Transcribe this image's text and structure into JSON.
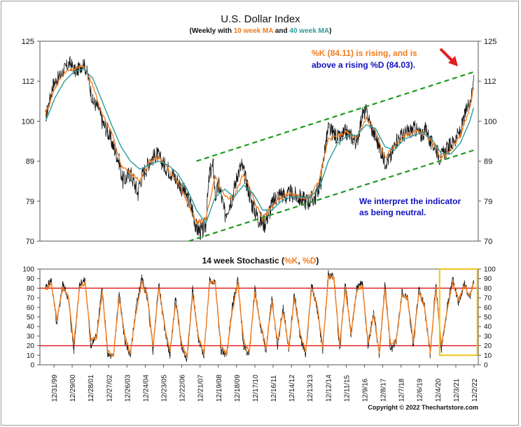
{
  "title": "U.S. Dollar Index",
  "subtitle": {
    "prefix": "(Weekly with ",
    "ma_short": "10 week MA",
    "middle": " and ",
    "ma_long": "40 week MA",
    "suffix": ")"
  },
  "annotations": {
    "k_line1_a": "%K (84.11)",
    "k_line1_b": " is rising, and is",
    "k_line2_a": "above a rising ",
    "k_line2_b": "%D (84.03).",
    "interpret_line1": "We interpret the indicator",
    "interpret_line2": "as being neutral."
  },
  "stoch_title": {
    "prefix": "14 week Stochastic (",
    "k": "%K",
    "sep": ", ",
    "d": "%D",
    "suffix": ")"
  },
  "copyright": "Copyright © 2022 Thechartstore.com",
  "colors": {
    "price": "#111111",
    "ma10": "#f07c1e",
    "ma40": "#2a9b9b",
    "channel": "#1f9a1f",
    "arrow": "#e02020",
    "k_line": "#111111",
    "d_line": "#f07c1e",
    "stoch_levels": "#e02020",
    "highlight_box": "#f0c419",
    "annotation_blue": "#1010c0"
  },
  "chart_data": [
    {
      "type": "line",
      "title": "U.S. Dollar Index",
      "ylim": [
        70,
        125
      ],
      "y_ticks": [
        70,
        79,
        89,
        100,
        112,
        125
      ],
      "x_ticks": [
        "12/31/99",
        "12/29/00",
        "12/28/01",
        "12/27/02",
        "12/26/03",
        "12/24/04",
        "12/23/05",
        "12/22/06",
        "12/21/07",
        "12/19/08",
        "12/18/09",
        "12/17/10",
        "12/16/11",
        "12/14/12",
        "12/13/13",
        "12/12/14",
        "12/11/15",
        "12/9/16",
        "12/8/17",
        "12/7/18",
        "12/6/19",
        "12/4/20",
        "12/3/21",
        "12/2/22"
      ],
      "series": [
        {
          "name": "",
          "role": "price",
          "x": [
            2000.0,
            2000.4,
            2000.8,
            2001.0,
            2001.3,
            2001.6,
            2001.9,
            2002.0,
            2002.2,
            2002.5,
            2002.8,
            2003.0,
            2003.3,
            2003.6,
            2003.9,
            2004.1,
            2004.5,
            2004.9,
            2005.0,
            2005.5,
            2005.9,
            2006.3,
            2006.7,
            2007.0,
            2007.4,
            2007.8,
            2008.0,
            2008.3,
            2008.5,
            2008.7,
            2008.9,
            2009.0,
            2009.2,
            2009.5,
            2009.9,
            2010.2,
            2010.4,
            2010.7,
            2010.9,
            2011.3,
            2011.6,
            2011.9,
            2012.2,
            2012.5,
            2012.8,
            2013.0,
            2013.4,
            2013.9,
            2014.3,
            2014.6,
            2014.8,
            2015.0,
            2015.2,
            2015.6,
            2015.9,
            2016.2,
            2016.5,
            2016.8,
            2017.0,
            2017.3,
            2017.7,
            2018.0,
            2018.3,
            2018.6,
            2018.9,
            2019.2,
            2019.6,
            2019.9,
            2020.2,
            2020.4,
            2020.7,
            2020.9,
            2021.1,
            2021.4,
            2021.7,
            2022.0,
            2022.3,
            2022.6,
            2022.7
          ],
          "y": [
            101,
            111,
            114,
            116,
            118,
            115,
            117,
            118,
            115,
            106,
            104,
            100,
            97,
            93,
            89,
            84,
            86,
            81,
            84,
            89,
            91,
            88,
            86,
            84,
            81,
            77,
            73,
            72,
            74,
            86,
            88,
            80,
            83,
            76,
            80,
            86,
            88,
            83,
            79,
            75,
            74,
            77,
            80,
            81,
            80,
            81,
            80,
            79,
            80,
            84,
            92,
            98,
            97,
            95,
            97,
            96,
            94,
            102,
            103,
            98,
            93,
            89,
            90,
            95,
            96,
            97,
            98,
            96,
            98,
            94,
            93,
            90,
            91,
            93,
            95,
            97,
            103,
            108,
            114
          ]
        },
        {
          "name": "10 week MA",
          "role": "ma10",
          "x": [
            2000.0,
            2000.5,
            2001.0,
            2001.5,
            2002.0,
            2002.5,
            2003.0,
            2003.5,
            2004.0,
            2004.5,
            2005.0,
            2005.5,
            2006.0,
            2006.5,
            2007.0,
            2007.5,
            2008.0,
            2008.5,
            2009.0,
            2009.5,
            2010.0,
            2010.5,
            2011.0,
            2011.5,
            2012.0,
            2012.5,
            2013.0,
            2013.5,
            2014.0,
            2014.5,
            2015.0,
            2015.5,
            2016.0,
            2016.5,
            2017.0,
            2017.5,
            2018.0,
            2018.5,
            2019.0,
            2019.5,
            2020.0,
            2020.5,
            2021.0,
            2021.5,
            2022.0,
            2022.5,
            2022.7
          ],
          "y": [
            102,
            110,
            115,
            116,
            117,
            111,
            102,
            97,
            88,
            86,
            84,
            89,
            90,
            87,
            84,
            79,
            74,
            75,
            85,
            80,
            80,
            86,
            80,
            75,
            78,
            80,
            81,
            80,
            80,
            84,
            95,
            96,
            97,
            95,
            101,
            97,
            90,
            93,
            96,
            97,
            97,
            94,
            90,
            92,
            96,
            104,
            110
          ]
        },
        {
          "name": "40 week MA",
          "role": "ma40",
          "x": [
            2000.0,
            2000.5,
            2001.0,
            2001.5,
            2002.0,
            2002.5,
            2003.0,
            2003.5,
            2004.0,
            2004.5,
            2005.0,
            2005.5,
            2006.0,
            2006.5,
            2007.0,
            2007.5,
            2008.0,
            2008.5,
            2009.0,
            2009.5,
            2010.0,
            2010.5,
            2011.0,
            2011.5,
            2012.0,
            2012.5,
            2013.0,
            2013.5,
            2014.0,
            2014.5,
            2015.0,
            2015.5,
            2016.0,
            2016.5,
            2017.0,
            2017.5,
            2018.0,
            2018.5,
            2019.0,
            2019.5,
            2020.0,
            2020.5,
            2021.0,
            2021.5,
            2022.0,
            2022.5,
            2022.7
          ],
          "y": [
            100,
            107,
            112,
            115,
            116,
            113,
            106,
            99,
            93,
            89,
            87,
            88,
            89,
            88,
            86,
            82,
            77,
            74,
            80,
            82,
            80,
            83,
            81,
            77,
            77,
            79,
            80,
            80,
            80,
            82,
            89,
            94,
            96,
            96,
            99,
            98,
            93,
            92,
            95,
            96,
            97,
            95,
            91,
            91,
            94,
            100,
            104
          ]
        }
      ],
      "channel": {
        "upper": {
          "x": [
            2008.0,
            2022.7
          ],
          "y": [
            89,
            115
          ]
        },
        "lower": {
          "x": [
            2007.6,
            2022.7
          ],
          "y": [
            70,
            92
          ]
        }
      }
    },
    {
      "type": "line",
      "title": "14 week Stochastic (%K, %D)",
      "ylim": [
        0,
        100
      ],
      "y_ticks": [
        0,
        10,
        20,
        30,
        40,
        50,
        60,
        70,
        80,
        90,
        100
      ],
      "reference_levels": [
        20,
        80
      ],
      "series": [
        {
          "name": "%K",
          "x": [
            2000.0,
            2000.3,
            2000.6,
            2000.9,
            2001.2,
            2001.5,
            2001.8,
            2002.1,
            2002.4,
            2002.7,
            2003.0,
            2003.3,
            2003.6,
            2003.9,
            2004.2,
            2004.5,
            2004.8,
            2005.1,
            2005.4,
            2005.7,
            2006.0,
            2006.3,
            2006.6,
            2006.9,
            2007.2,
            2007.5,
            2007.8,
            2008.1,
            2008.4,
            2008.7,
            2009.0,
            2009.3,
            2009.6,
            2009.9,
            2010.2,
            2010.5,
            2010.8,
            2011.1,
            2011.4,
            2011.7,
            2012.0,
            2012.3,
            2012.6,
            2012.9,
            2013.2,
            2013.5,
            2013.8,
            2014.1,
            2014.4,
            2014.7,
            2015.0,
            2015.3,
            2015.6,
            2015.9,
            2016.2,
            2016.5,
            2016.8,
            2017.1,
            2017.4,
            2017.7,
            2018.0,
            2018.3,
            2018.6,
            2018.9,
            2019.2,
            2019.5,
            2019.8,
            2020.1,
            2020.4,
            2020.7,
            2021.0,
            2021.3,
            2021.6,
            2021.9,
            2022.2,
            2022.5,
            2022.7
          ],
          "y": [
            80,
            88,
            40,
            85,
            70,
            15,
            85,
            88,
            20,
            30,
            80,
            10,
            8,
            75,
            25,
            10,
            60,
            90,
            70,
            15,
            85,
            40,
            10,
            70,
            20,
            5,
            80,
            25,
            10,
            90,
            85,
            15,
            10,
            60,
            90,
            20,
            10,
            80,
            40,
            15,
            70,
            20,
            60,
            15,
            75,
            30,
            10,
            85,
            60,
            15,
            95,
            90,
            15,
            85,
            30,
            80,
            85,
            20,
            55,
            10,
            85,
            15,
            25,
            75,
            70,
            20,
            80,
            60,
            10,
            85,
            15,
            60,
            90,
            65,
            85,
            70,
            84
          ]
        },
        {
          "name": "%D",
          "x": [
            2000.0,
            2000.3,
            2000.6,
            2000.9,
            2001.2,
            2001.5,
            2001.8,
            2002.1,
            2002.4,
            2002.7,
            2003.0,
            2003.3,
            2003.6,
            2003.9,
            2004.2,
            2004.5,
            2004.8,
            2005.1,
            2005.4,
            2005.7,
            2006.0,
            2006.3,
            2006.6,
            2006.9,
            2007.2,
            2007.5,
            2007.8,
            2008.1,
            2008.4,
            2008.7,
            2009.0,
            2009.3,
            2009.6,
            2009.9,
            2010.2,
            2010.5,
            2010.8,
            2011.1,
            2011.4,
            2011.7,
            2012.0,
            2012.3,
            2012.6,
            2012.9,
            2013.2,
            2013.5,
            2013.8,
            2014.1,
            2014.4,
            2014.7,
            2015.0,
            2015.3,
            2015.6,
            2015.9,
            2016.2,
            2016.5,
            2016.8,
            2017.1,
            2017.4,
            2017.7,
            2018.0,
            2018.3,
            2018.6,
            2018.9,
            2019.2,
            2019.5,
            2019.8,
            2020.1,
            2020.4,
            2020.7,
            2021.0,
            2021.3,
            2021.6,
            2021.9,
            2022.2,
            2022.5,
            2022.7
          ],
          "y": [
            78,
            85,
            48,
            80,
            72,
            22,
            80,
            86,
            26,
            28,
            75,
            14,
            10,
            70,
            30,
            13,
            55,
            86,
            72,
            20,
            80,
            44,
            13,
            65,
            24,
            8,
            75,
            30,
            12,
            86,
            86,
            20,
            12,
            55,
            86,
            25,
            12,
            75,
            42,
            18,
            66,
            24,
            56,
            18,
            70,
            32,
            13,
            80,
            62,
            18,
            92,
            90,
            20,
            80,
            33,
            77,
            83,
            24,
            52,
            13,
            80,
            20,
            26,
            72,
            70,
            24,
            76,
            60,
            13,
            80,
            20,
            57,
            86,
            68,
            83,
            72,
            84
          ]
        }
      ],
      "highlight": {
        "x_from": 2020.9,
        "x_to": 2022.9,
        "y_from": 10,
        "y_to": 100
      }
    }
  ]
}
